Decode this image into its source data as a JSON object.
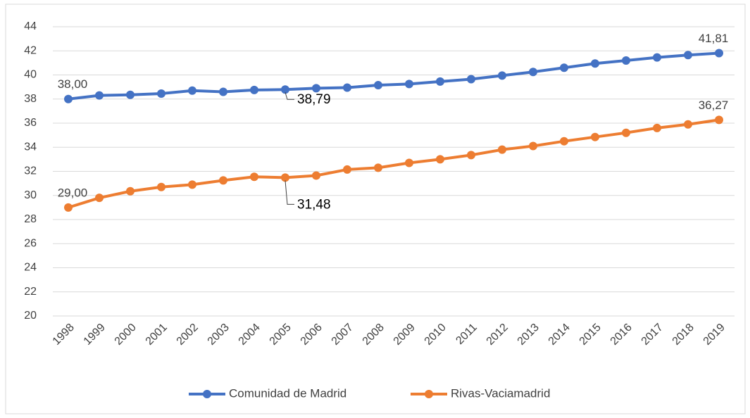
{
  "chart_data": {
    "type": "line",
    "categories": [
      "1998",
      "1999",
      "2000",
      "2001",
      "2002",
      "2003",
      "2004",
      "2005",
      "2006",
      "2007",
      "2008",
      "2009",
      "2010",
      "2011",
      "2012",
      "2013",
      "2014",
      "2015",
      "2016",
      "2017",
      "2018",
      "2019"
    ],
    "series": [
      {
        "name": "Comunidad de Madrid",
        "color": "#4472c4",
        "values": [
          38.0,
          38.3,
          38.35,
          38.45,
          38.7,
          38.6,
          38.75,
          38.79,
          38.9,
          38.95,
          39.15,
          39.25,
          39.45,
          39.65,
          39.95,
          40.25,
          40.6,
          40.95,
          41.2,
          41.45,
          41.65,
          41.81
        ],
        "value_labels": [
          "38,00",
          null,
          null,
          null,
          null,
          null,
          null,
          "38,79",
          null,
          null,
          null,
          null,
          null,
          null,
          null,
          null,
          null,
          null,
          null,
          null,
          null,
          "41,81"
        ]
      },
      {
        "name": "Rivas-Vaciamadrid",
        "color": "#ed7d31",
        "values": [
          29.0,
          29.8,
          30.35,
          30.7,
          30.9,
          31.25,
          31.55,
          31.48,
          31.65,
          32.15,
          32.3,
          32.7,
          33.0,
          33.35,
          33.8,
          34.1,
          34.5,
          34.85,
          35.2,
          35.6,
          35.9,
          36.27
        ],
        "value_labels": [
          "29,00",
          null,
          null,
          null,
          null,
          null,
          null,
          "31,48",
          null,
          null,
          null,
          null,
          null,
          null,
          null,
          null,
          null,
          null,
          null,
          null,
          null,
          "36,27"
        ]
      }
    ],
    "ylim": [
      20,
      44
    ],
    "yticks": [
      20,
      22,
      24,
      26,
      28,
      30,
      32,
      34,
      36,
      38,
      40,
      42,
      44
    ],
    "grid": true,
    "legend": "bottom"
  }
}
